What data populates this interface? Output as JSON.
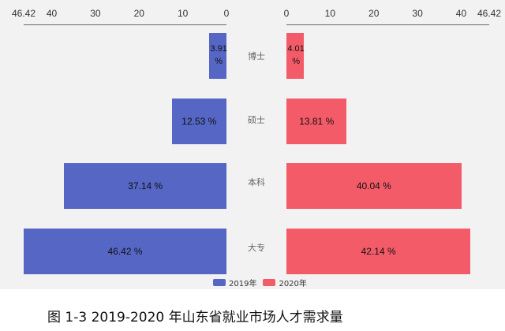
{
  "chart_data": {
    "type": "bar",
    "orientation": "horizontal-butterfly",
    "categories": [
      "博士",
      "硕士",
      "本科",
      "大专"
    ],
    "series": [
      {
        "name": "2019年",
        "values": [
          3.91,
          12.53,
          37.14,
          46.42
        ],
        "labels": [
          "3.91 %",
          "12.53 %",
          "37.14 %",
          "46.42 %"
        ],
        "color": "#5566c4",
        "side": "left"
      },
      {
        "name": "2020年",
        "values": [
          4.01,
          13.81,
          40.04,
          42.14
        ],
        "labels": [
          "4.01 %",
          "13.81 %",
          "40.04 %",
          "42.14 %"
        ],
        "color": "#f45b69",
        "side": "right"
      }
    ],
    "xlim": [
      0,
      46.42
    ],
    "ticks": [
      "0",
      "10",
      "20",
      "30",
      "40",
      "46.42"
    ],
    "tick_values": [
      0,
      10,
      20,
      30,
      40,
      46.42
    ],
    "legend_position": "bottom",
    "grid": false
  },
  "caption": "图 1-3 2019-2020 年山东省就业市场人才需求量"
}
